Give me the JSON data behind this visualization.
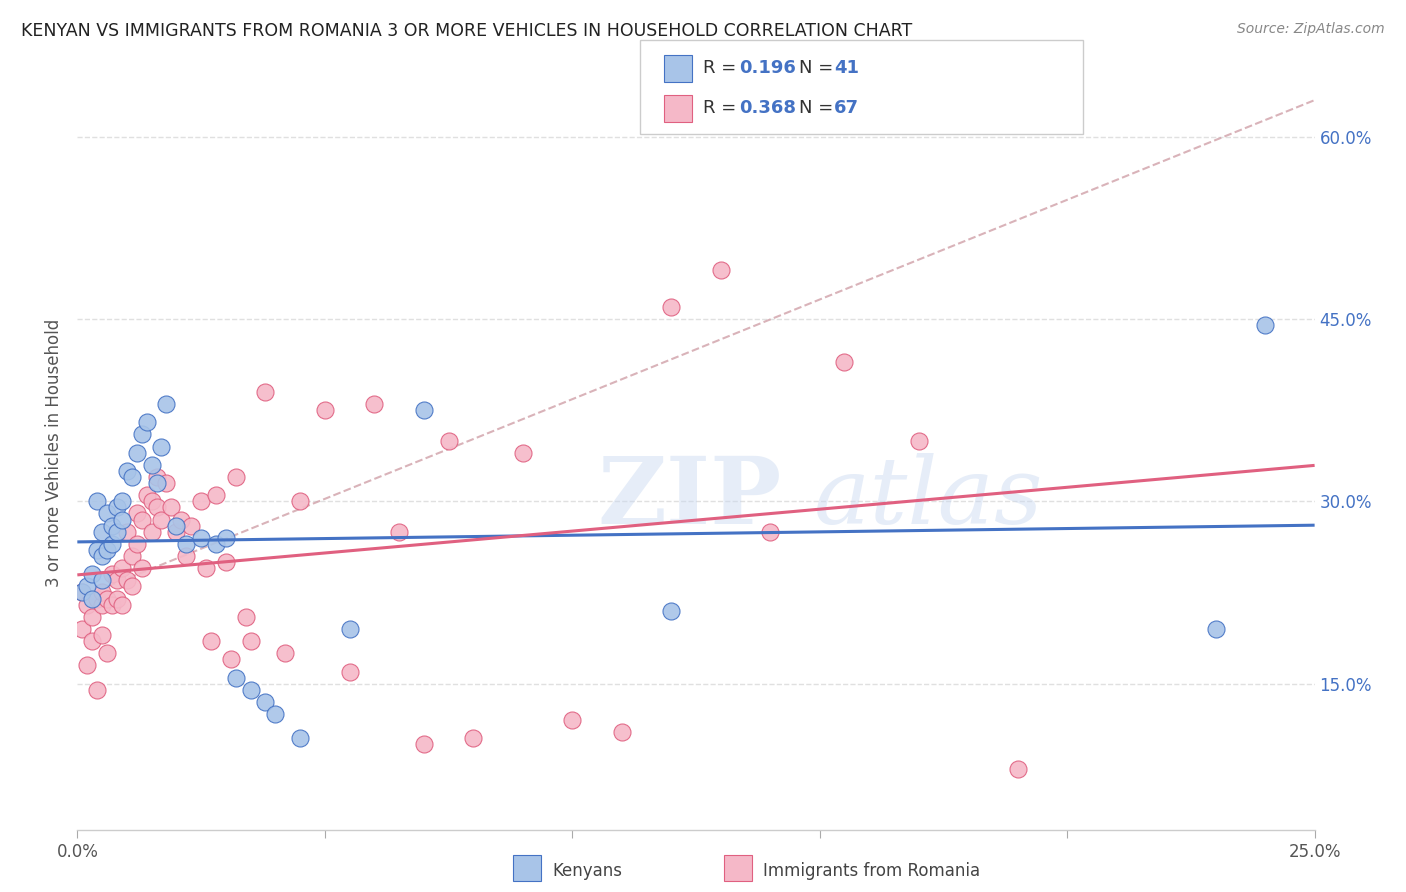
{
  "title": "KENYAN VS IMMIGRANTS FROM ROMANIA 3 OR MORE VEHICLES IN HOUSEHOLD CORRELATION CHART",
  "source": "Source: ZipAtlas.com",
  "ylabel": "3 or more Vehicles in Household",
  "watermark_zip": "ZIP",
  "watermark_atlas": "atlas",
  "xmin": 0.0,
  "xmax": 0.25,
  "ymin": 0.03,
  "ymax": 0.65,
  "x_ticks": [
    0.0,
    0.05,
    0.1,
    0.15,
    0.2,
    0.25
  ],
  "x_tick_labels": [
    "0.0%",
    "",
    "",
    "",
    "",
    "25.0%"
  ],
  "y_ticks": [
    0.15,
    0.3,
    0.45,
    0.6
  ],
  "y_tick_labels": [
    "15.0%",
    "30.0%",
    "45.0%",
    "60.0%"
  ],
  "kenyan_fill": "#a8c4e8",
  "kenyan_edge": "#4472c4",
  "romania_fill": "#f5b8c8",
  "romania_edge": "#e06080",
  "kenyan_line_color": "#4472c4",
  "romania_line_color": "#e06080",
  "diagonal_color": "#d0a0a8",
  "R_kenyan": 0.196,
  "N_kenyan": 41,
  "R_romania": 0.368,
  "N_romania": 67,
  "kenyan_scatter_x": [
    0.001,
    0.002,
    0.003,
    0.003,
    0.004,
    0.004,
    0.005,
    0.005,
    0.005,
    0.006,
    0.006,
    0.007,
    0.007,
    0.008,
    0.008,
    0.009,
    0.009,
    0.01,
    0.011,
    0.012,
    0.013,
    0.014,
    0.015,
    0.016,
    0.017,
    0.018,
    0.02,
    0.022,
    0.025,
    0.028,
    0.03,
    0.032,
    0.035,
    0.038,
    0.04,
    0.045,
    0.055,
    0.07,
    0.12,
    0.23,
    0.24
  ],
  "kenyan_scatter_y": [
    0.225,
    0.23,
    0.24,
    0.22,
    0.3,
    0.26,
    0.275,
    0.255,
    0.235,
    0.29,
    0.26,
    0.28,
    0.265,
    0.295,
    0.275,
    0.3,
    0.285,
    0.325,
    0.32,
    0.34,
    0.355,
    0.365,
    0.33,
    0.315,
    0.345,
    0.38,
    0.28,
    0.265,
    0.27,
    0.265,
    0.27,
    0.155,
    0.145,
    0.135,
    0.125,
    0.105,
    0.195,
    0.375,
    0.21,
    0.195,
    0.445
  ],
  "romania_scatter_x": [
    0.001,
    0.001,
    0.002,
    0.002,
    0.003,
    0.003,
    0.004,
    0.004,
    0.005,
    0.005,
    0.005,
    0.006,
    0.006,
    0.007,
    0.007,
    0.008,
    0.008,
    0.009,
    0.009,
    0.01,
    0.01,
    0.011,
    0.011,
    0.012,
    0.012,
    0.013,
    0.013,
    0.014,
    0.015,
    0.015,
    0.016,
    0.016,
    0.017,
    0.018,
    0.019,
    0.02,
    0.021,
    0.022,
    0.023,
    0.025,
    0.026,
    0.027,
    0.028,
    0.03,
    0.031,
    0.032,
    0.034,
    0.035,
    0.038,
    0.042,
    0.045,
    0.05,
    0.055,
    0.06,
    0.065,
    0.07,
    0.075,
    0.08,
    0.09,
    0.1,
    0.11,
    0.12,
    0.13,
    0.14,
    0.155,
    0.17,
    0.19
  ],
  "romania_scatter_y": [
    0.225,
    0.195,
    0.215,
    0.165,
    0.205,
    0.185,
    0.22,
    0.145,
    0.215,
    0.19,
    0.225,
    0.22,
    0.175,
    0.215,
    0.24,
    0.22,
    0.235,
    0.245,
    0.215,
    0.235,
    0.275,
    0.255,
    0.23,
    0.265,
    0.29,
    0.285,
    0.245,
    0.305,
    0.3,
    0.275,
    0.295,
    0.32,
    0.285,
    0.315,
    0.295,
    0.275,
    0.285,
    0.255,
    0.28,
    0.3,
    0.245,
    0.185,
    0.305,
    0.25,
    0.17,
    0.32,
    0.205,
    0.185,
    0.39,
    0.175,
    0.3,
    0.375,
    0.16,
    0.38,
    0.275,
    0.1,
    0.35,
    0.105,
    0.34,
    0.12,
    0.11,
    0.46,
    0.49,
    0.275,
    0.415,
    0.35,
    0.08
  ],
  "background_color": "#ffffff",
  "grid_color": "#e0e0e0"
}
